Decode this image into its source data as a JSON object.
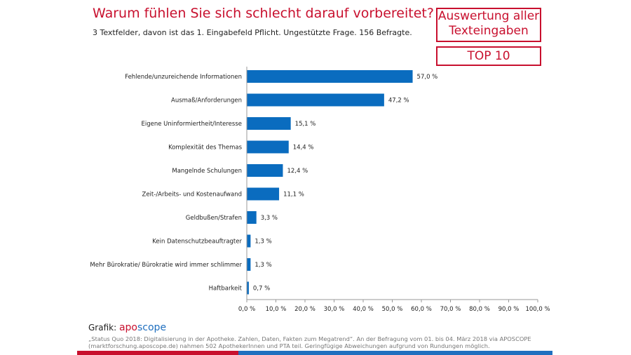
{
  "header": {
    "title": "Warum fühlen Sie sich schlecht darauf vorbereitet?",
    "subtitle": "3 Textfelder, davon ist das 1. Eingabefeld Pflicht. Ungestützte Frage. 156 Befragte.",
    "box1_line1": "Auswertung aller",
    "box1_line2": "Texteingaben",
    "box2": "TOP 10"
  },
  "chart_data": {
    "type": "bar",
    "orientation": "horizontal",
    "categories": [
      "Fehlende/unzureichende Informationen",
      "Ausmaß/Anforderungen",
      "Eigene Uninformiertheit/Interesse",
      "Komplexität des Themas",
      "Mangelnde Schulungen",
      "Zeit-/Arbeits- und Kostenaufwand",
      "Geldbußen/Strafen",
      "Kein Datenschutzbeauftragter",
      "Mehr Bürokratie/ Bürokratie wird immer schlimmer",
      "Haftbarkeit"
    ],
    "values": [
      57.0,
      47.2,
      15.1,
      14.4,
      12.4,
      11.1,
      3.3,
      1.3,
      1.3,
      0.7
    ],
    "value_labels": [
      "57,0 %",
      "47,2 %",
      "15,1 %",
      "14,4 %",
      "12,4 %",
      "11,1 %",
      "3,3 %",
      "1,3 %",
      "1,3 %",
      "0,7 %"
    ],
    "xlim": [
      0,
      100
    ],
    "xticks": [
      "0,0 %",
      "10,0 %",
      "20,0 %",
      "30,0 %",
      "40,0 %",
      "50,0 %",
      "60,0 %",
      "70,0 %",
      "80,0 %",
      "90,0 %",
      "100,0 %"
    ],
    "bar_color": "#0a6cbf",
    "grid": false
  },
  "footer": {
    "grafik_label": "Grafik:",
    "brand_a": "apo",
    "brand_b": "scope",
    "source": "„Status Quo 2018: Digitalisierung in der Apotheke. Zahlen, Daten, Fakten zum Megatrend“. An der Befragung vom 01. bis 04. März 2018 via APOSCOPE (marktforschung.aposcope.de) nahmen 502 ApothekerInnen und PTA teil. Geringfügige Abweichungen aufgrund von Rundungen möglich."
  },
  "colors": {
    "red": "#c8102e",
    "blue": "#1f6fbf"
  }
}
